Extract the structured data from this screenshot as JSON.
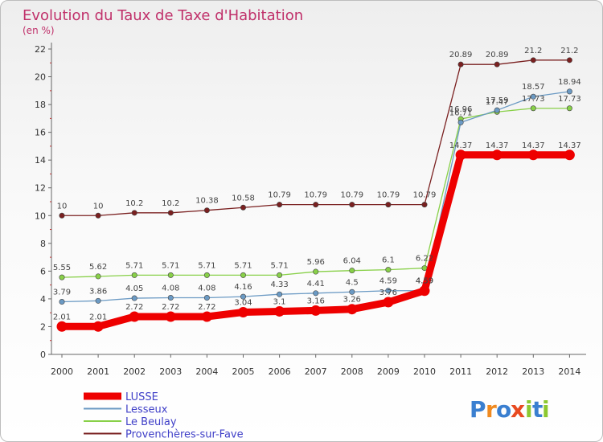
{
  "chart_data": {
    "type": "line",
    "title": "Evolution du Taux de Taxe d'Habitation",
    "subtitle": "(en %)",
    "x": [
      "2000",
      "2001",
      "2002",
      "2003",
      "2004",
      "2005",
      "2006",
      "2007",
      "2008",
      "2009",
      "2010",
      "2011",
      "2012",
      "2013",
      "2014"
    ],
    "ylim": [
      0,
      22
    ],
    "yticks": [
      0,
      2,
      4,
      6,
      8,
      10,
      12,
      14,
      16,
      18,
      20,
      22
    ],
    "grid": false,
    "legend_position": "bottom-left",
    "series": [
      {
        "name": "LUSSE",
        "color": "#ee0000",
        "values": [
          2.01,
          2.01,
          2.72,
          2.72,
          2.72,
          3.04,
          3.1,
          3.16,
          3.26,
          3.76,
          4.59,
          14.37,
          14.37,
          14.37,
          14.37
        ],
        "labels": [
          "2.01",
          "2.01",
          "2.72",
          "2.72",
          "2.72",
          "3.04",
          "3.1",
          "3.16",
          "3.26",
          "3.76",
          "4.59",
          "14.37",
          "14.37",
          "14.37",
          "14.37"
        ]
      },
      {
        "name": "Lesseux",
        "color": "#6b9ac4",
        "values": [
          3.79,
          3.86,
          4.05,
          4.08,
          4.08,
          4.16,
          4.33,
          4.41,
          4.5,
          4.59,
          4.59,
          16.71,
          17.59,
          18.57,
          18.94
        ],
        "labels": [
          "3.79",
          "3.86",
          "4.05",
          "4.08",
          "4.08",
          "4.16",
          "4.33",
          "4.41",
          "4.5",
          "4.59",
          "4.59",
          "16.71",
          "17.59",
          "18.57",
          "18.94"
        ]
      },
      {
        "name": "Le Beulay",
        "color": "#88d048",
        "values": [
          5.55,
          5.62,
          5.71,
          5.71,
          5.71,
          5.71,
          5.71,
          5.96,
          6.04,
          6.1,
          6.22,
          16.96,
          17.47,
          17.73,
          17.73
        ],
        "labels": [
          "5.55",
          "5.62",
          "5.71",
          "5.71",
          "5.71",
          "5.71",
          "5.71",
          "5.96",
          "6.04",
          "6.1",
          "6.22",
          "16.96",
          "17.47",
          "17.73",
          "17.73"
        ]
      },
      {
        "name": "Provenchères-sur-Fave",
        "color": "#7a2020",
        "values": [
          10,
          10,
          10.2,
          10.2,
          10.38,
          10.58,
          10.79,
          10.79,
          10.79,
          10.79,
          10.79,
          20.89,
          20.89,
          21.2,
          21.2
        ],
        "labels": [
          "10",
          "10",
          "10.2",
          "10.2",
          "10.38",
          "10.58",
          "10.79",
          "10.79",
          "10.79",
          "10.79",
          "10.79",
          "20.89",
          "20.89",
          "21.2",
          "21.2"
        ]
      }
    ]
  },
  "logo": {
    "text": "Proxiti",
    "letters": [
      "P",
      "r",
      "o",
      "x",
      "i",
      "t",
      "i"
    ]
  }
}
